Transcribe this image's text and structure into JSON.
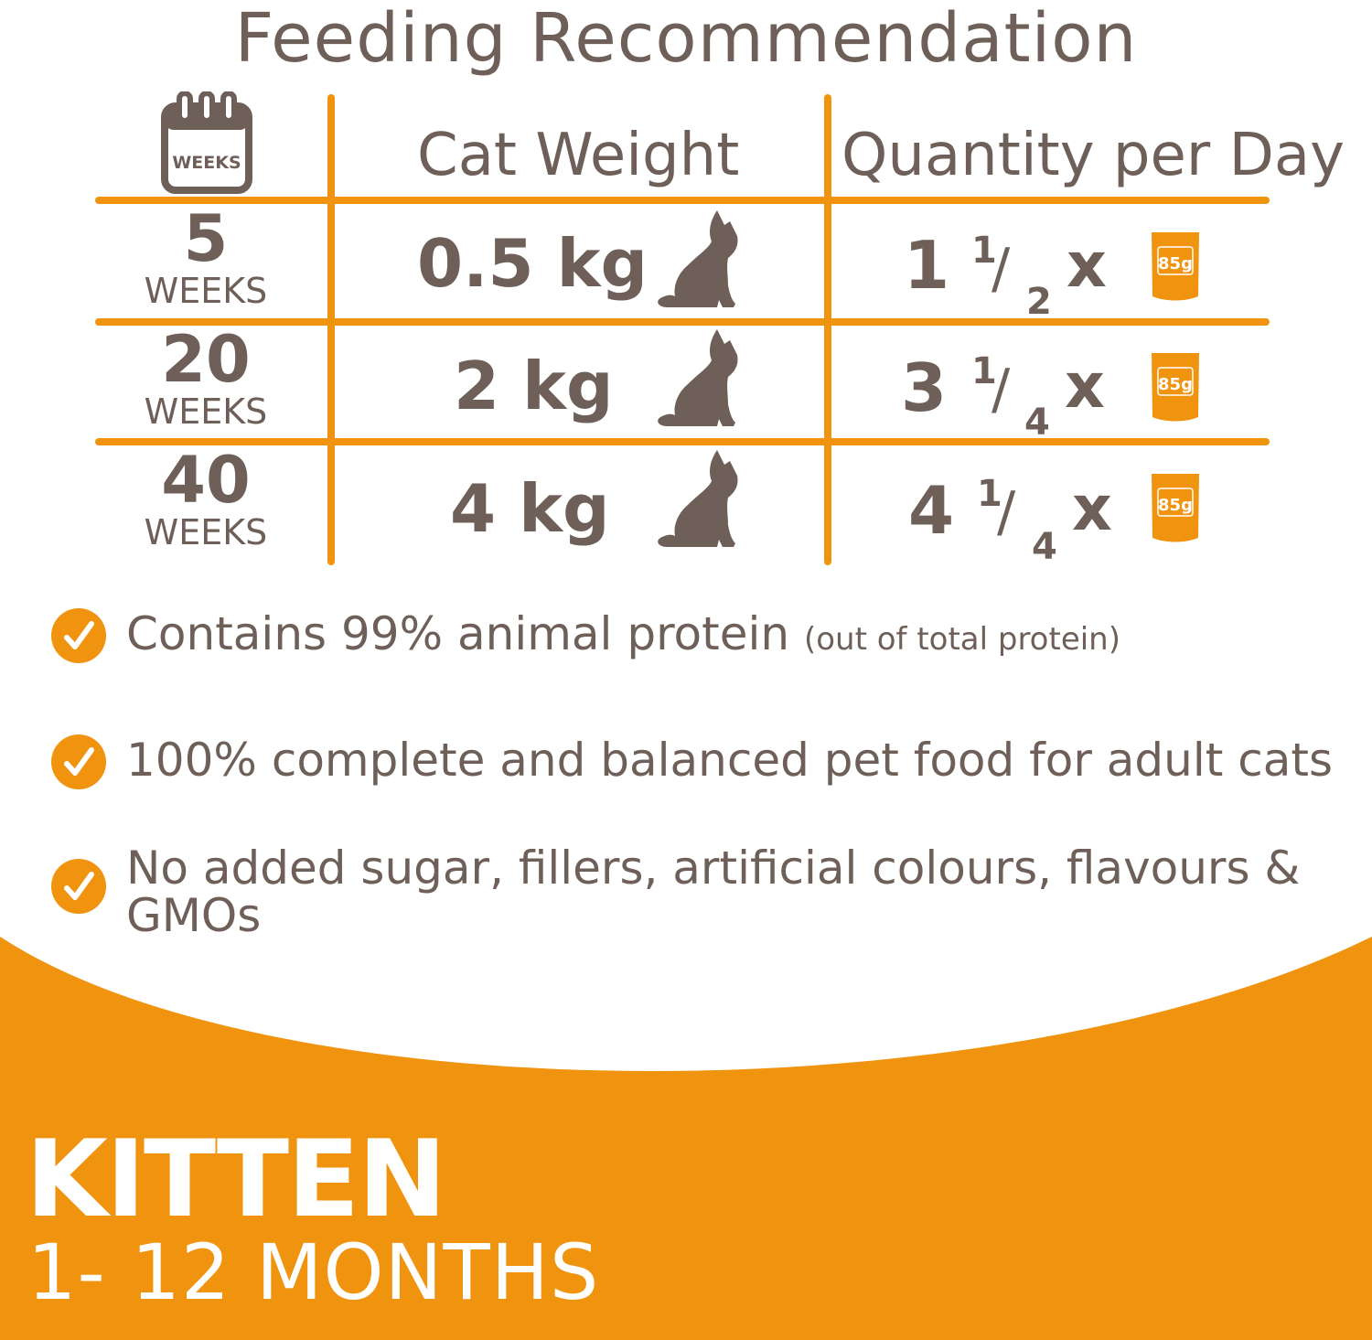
{
  "title": "Feeding Recommendation",
  "table": {
    "calendar_label": "WEEKS",
    "headers": {
      "weight": "Cat Weight",
      "quantity": "Quantity per Day"
    },
    "rows": [
      {
        "age": "5",
        "age_unit": "WEEKS",
        "weight": "0.5 kg",
        "qty_whole": "1",
        "qty_num": "1",
        "qty_slash": "/",
        "qty_den": "2",
        "qty_x": "x",
        "pouch_label": "85g"
      },
      {
        "age": "20",
        "age_unit": "WEEKS",
        "weight": "2 kg",
        "qty_whole": "3",
        "qty_num": "1",
        "qty_slash": "/",
        "qty_den": "4",
        "qty_x": "x",
        "pouch_label": "85g"
      },
      {
        "age": "40",
        "age_unit": "WEEKS",
        "weight": "4 kg",
        "qty_whole": "4",
        "qty_num": "1",
        "qty_slash": "/",
        "qty_den": "4",
        "qty_x": "x",
        "pouch_label": "85g"
      }
    ]
  },
  "bullets": [
    {
      "text": "Contains 99% animal protein",
      "note": "(out of total protein)"
    },
    {
      "text": "100% complete and balanced pet food for adult cats"
    },
    {
      "line1": "No added sugar, fillers, artificial colours, flavours &",
      "line2": "GMOs"
    }
  ],
  "footer": {
    "title": "KITTEN",
    "subtitle": "1- 12 MONTHS"
  },
  "colors": {
    "orange": "#f0930f",
    "brown": "#6e6059",
    "white": "#ffffff"
  },
  "icons": [
    "calendar-icon",
    "cat-silhouette-icon",
    "food-pouch-icon",
    "checkmark-icon"
  ]
}
